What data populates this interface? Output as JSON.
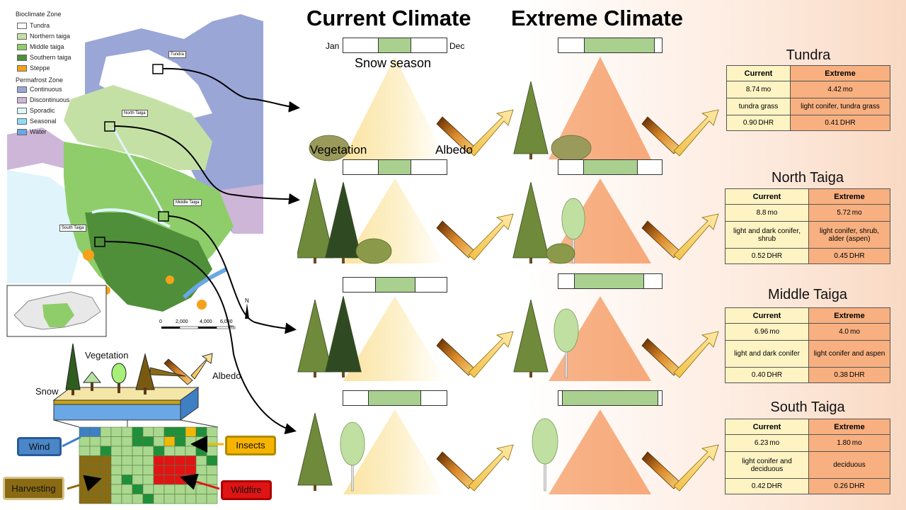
{
  "titles": {
    "current": "Current Climate",
    "extreme": "Extreme Climate"
  },
  "legend": {
    "bioclimate_title": "Bioclimate Zone",
    "bioclimate": [
      {
        "label": "Tundra",
        "color": "#ffffff"
      },
      {
        "label": "Northern taiga",
        "color": "#c5e0a5"
      },
      {
        "label": "Middle taiga",
        "color": "#8fcd6a"
      },
      {
        "label": "Southern taiga",
        "color": "#4f8f3a"
      },
      {
        "label": "Steppe",
        "color": "#f5a21a"
      }
    ],
    "permafrost_title": "Permafrost Zone",
    "permafrost": [
      {
        "label": "Continuous",
        "color": "#9aa6d6"
      },
      {
        "label": "Discontinuous",
        "color": "#cdb6d8"
      },
      {
        "label": "Sporadic",
        "color": "#dff5fb"
      },
      {
        "label": "Seasonal",
        "color": "#8fdcf5"
      },
      {
        "label": "Water",
        "color": "#6aa7e6"
      }
    ]
  },
  "map": {
    "site_labels": [
      "Tundra",
      "North Taiga",
      "Middle Taiga",
      "South Taiga"
    ],
    "scale": [
      "0",
      "2,000",
      "4,000",
      "6,000"
    ],
    "scale_unit": "km",
    "north": "N"
  },
  "diagram_labels": {
    "jan": "Jan",
    "dec": "Dec",
    "snow_season": "Snow season",
    "vegetation": "Vegetation",
    "albedo": "Albedo"
  },
  "model": {
    "vegetation": "Vegetation",
    "snow": "Snow",
    "albedo": "Albedo",
    "wind": "Wind",
    "insects": "Insects",
    "harvesting": "Harvesting",
    "wildfire": "Wildfire"
  },
  "colors": {
    "current_bg": "#fdf3c3",
    "extreme_bg": "#f8b080",
    "snow_fill": "#a9d08e",
    "wind": "#3f7fc4",
    "insects": "#f2b705",
    "harvesting": "#8a6a12",
    "wildfire": "#e01414"
  },
  "zones": [
    {
      "name": "Tundra",
      "header_current": "Current",
      "header_extreme": "Extreme",
      "current": {
        "snow": "8.74 mo",
        "veg": "tundra grass",
        "albedo": "0.90 DHR"
      },
      "extreme": {
        "snow": "4.42 mo",
        "veg": "light conifer, tundra grass",
        "albedo": "0.41 DHR"
      }
    },
    {
      "name": "North Taiga",
      "header_current": "Current",
      "header_extreme": "Extreme",
      "current": {
        "snow": "8.8 mo",
        "veg": "light and dark conifer, shrub",
        "albedo": "0.52 DHR"
      },
      "extreme": {
        "snow": "5.72 mo",
        "veg": "light conifer, shrub, alder (aspen)",
        "albedo": "0.45 DHR"
      }
    },
    {
      "name": "Middle Taiga",
      "header_current": "Current",
      "header_extreme": "Extreme",
      "current": {
        "snow": "6.96 mo",
        "veg": "light and dark conifer",
        "albedo": "0.40 DHR"
      },
      "extreme": {
        "snow": "4.0 mo",
        "veg": "light conifer and aspen",
        "albedo": "0.38 DHR"
      }
    },
    {
      "name": "South Taiga",
      "header_current": "Current",
      "header_extreme": "Extreme",
      "current": {
        "snow": "6.23 mo",
        "veg": "light conifer and deciduous",
        "albedo": "0.42 DHR"
      },
      "extreme": {
        "snow": "1.80 mo",
        "veg": "deciduous",
        "albedo": "0.26 DHR"
      }
    }
  ]
}
